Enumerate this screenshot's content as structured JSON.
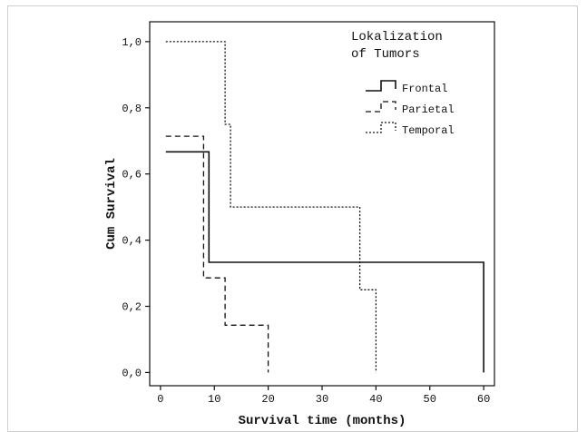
{
  "chart_data": {
    "type": "line",
    "step": true,
    "xlabel": "Survival time (months)",
    "ylabel": "Cum Survival",
    "xlim": [
      -2,
      62
    ],
    "ylim": [
      -0.04,
      1.06
    ],
    "xticks": [
      0,
      10,
      20,
      30,
      40,
      50,
      60
    ],
    "xtick_labels": [
      "0",
      "10",
      "20",
      "30",
      "40",
      "50",
      "60"
    ],
    "yticks": [
      0.0,
      0.2,
      0.4,
      0.6,
      0.8,
      1.0
    ],
    "ytick_labels": [
      "0,0",
      "0,2",
      "0,4",
      "0,6",
      "0,8",
      "1,0"
    ],
    "legend": {
      "title_lines": [
        "Lokalization",
        "of Tumors"
      ],
      "placement": "top-right"
    },
    "series": [
      {
        "name": "Frontal",
        "style": "solid",
        "color": "#111111",
        "points": [
          [
            1,
            0.667
          ],
          [
            9,
            0.667
          ],
          [
            9,
            0.333
          ],
          [
            60,
            0.333
          ],
          [
            60,
            0.0
          ]
        ]
      },
      {
        "name": "Parietal",
        "style": "dashed",
        "color": "#111111",
        "points": [
          [
            1,
            0.714
          ],
          [
            8,
            0.714
          ],
          [
            8,
            0.286
          ],
          [
            12,
            0.286
          ],
          [
            12,
            0.143
          ],
          [
            20,
            0.143
          ],
          [
            20,
            0.0
          ]
        ]
      },
      {
        "name": "Temporal",
        "style": "dotted",
        "color": "#111111",
        "points": [
          [
            1,
            1.0
          ],
          [
            12,
            1.0
          ],
          [
            12,
            0.75
          ],
          [
            13,
            0.75
          ],
          [
            13,
            0.5
          ],
          [
            37,
            0.5
          ],
          [
            37,
            0.25
          ],
          [
            40,
            0.25
          ],
          [
            40,
            0.0
          ]
        ]
      }
    ]
  }
}
